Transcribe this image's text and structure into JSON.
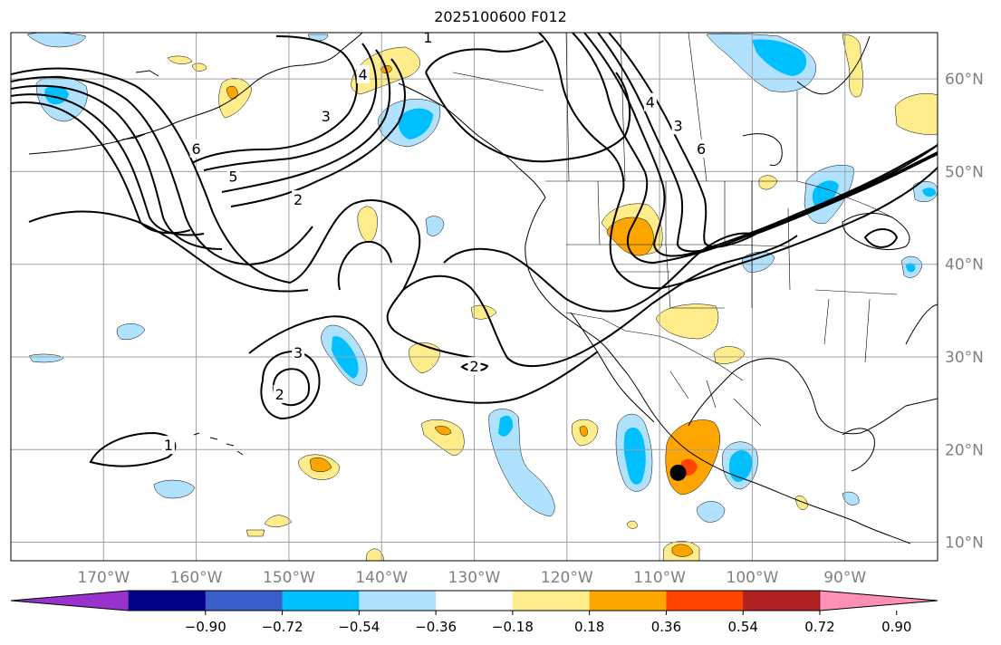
{
  "title": "2025100600 F012",
  "map": {
    "projection": "plate-carree",
    "lon_range": [
      -180,
      -80
    ],
    "lat_range": [
      8,
      65
    ],
    "gridlines": true,
    "lon_ticks": [
      {
        "value": -170,
        "label": "170°W"
      },
      {
        "value": -160,
        "label": "160°W"
      },
      {
        "value": -150,
        "label": "150°W"
      },
      {
        "value": -140,
        "label": "140°W"
      },
      {
        "value": -130,
        "label": "130°W"
      },
      {
        "value": -120,
        "label": "120°W"
      },
      {
        "value": -110,
        "label": "110°W"
      },
      {
        "value": -100,
        "label": "100°W"
      },
      {
        "value": -90,
        "label": "90°W"
      }
    ],
    "lat_ticks": [
      {
        "value": 10,
        "label": "10°N"
      },
      {
        "value": 20,
        "label": "20°N"
      },
      {
        "value": 30,
        "label": "30°N"
      },
      {
        "value": 40,
        "label": "40°N"
      },
      {
        "value": 50,
        "label": "50°N"
      },
      {
        "value": 60,
        "label": "60°N"
      }
    ],
    "tick_label_color": "#808080",
    "marker": {
      "lon": -108,
      "lat": 17.5,
      "color": "#000000"
    },
    "contour_labels": [
      {
        "lon": -135,
        "lat": 64.5,
        "text": "1"
      },
      {
        "lon": -163,
        "lat": 20.5,
        "text": "1"
      },
      {
        "lon": -142,
        "lat": 60.5,
        "text": "4"
      },
      {
        "lon": -146,
        "lat": 56,
        "text": "3"
      },
      {
        "lon": -160,
        "lat": 52.5,
        "text": "6"
      },
      {
        "lon": -156,
        "lat": 49.5,
        "text": "5"
      },
      {
        "lon": -149,
        "lat": 47,
        "text": "2"
      },
      {
        "lon": -149,
        "lat": 30.5,
        "text": "3"
      },
      {
        "lon": -151,
        "lat": 26,
        "text": "2"
      },
      {
        "lon": -130,
        "lat": 29,
        "text": "2"
      },
      {
        "lon": -111,
        "lat": 57.5,
        "text": "4"
      },
      {
        "lon": -108,
        "lat": 55,
        "text": "3"
      },
      {
        "lon": -105.5,
        "lat": 52.5,
        "text": "6"
      }
    ]
  },
  "colorbar": {
    "extend": "both",
    "bins": [
      "#9932cc",
      "#00008b",
      "#3a5fcd",
      "#00bfff",
      "#b0e2ff",
      "#ffffff",
      "#ffec8b",
      "#ffa500",
      "#ff4500",
      "#b22222",
      "#ff8fb4"
    ],
    "ticks": [
      "−0.90",
      "−0.72",
      "−0.54",
      "−0.36",
      "−0.18",
      "0.18",
      "0.36",
      "0.54",
      "0.72",
      "0.90"
    ]
  },
  "field_colors": {
    "light_blue": "#b0e2ff",
    "blue": "#00bfff",
    "yellow": "#ffec8b",
    "orange": "#ffa500",
    "red_orange": "#ff4500"
  }
}
